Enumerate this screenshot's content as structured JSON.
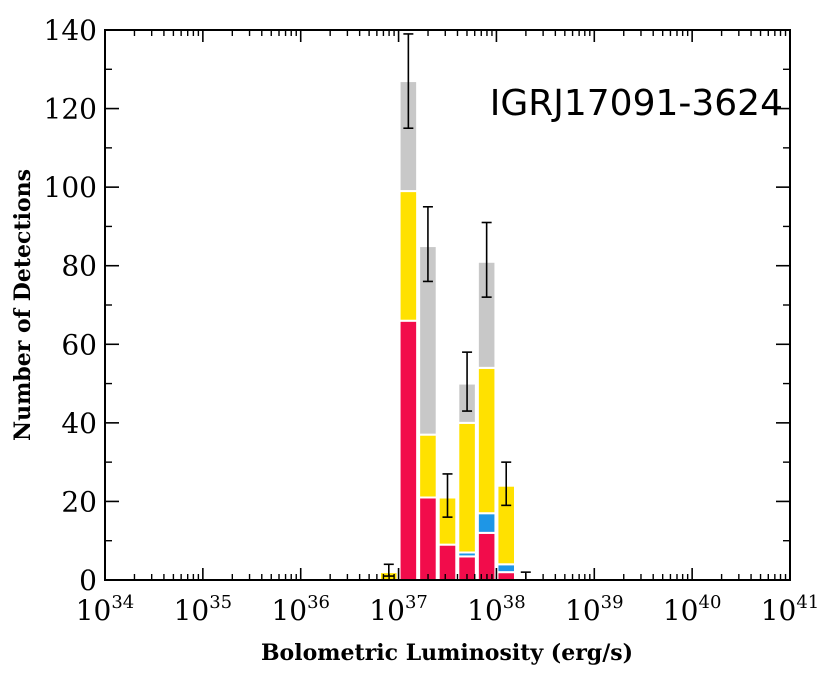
{
  "chart_data": {
    "type": "bar",
    "stacked": true,
    "annotation": "IGRJ17091-3624",
    "xlabel": "Bolometric Luminosity (erg/s)",
    "ylabel": "Number of Detections",
    "x_scale": "log",
    "xlim": [
      34,
      41
    ],
    "ylim": [
      0,
      140
    ],
    "x_tick_labels": [
      {
        "base": "10",
        "exp": "34"
      },
      {
        "base": "10",
        "exp": "35"
      },
      {
        "base": "10",
        "exp": "36"
      },
      {
        "base": "10",
        "exp": "37"
      },
      {
        "base": "10",
        "exp": "38"
      },
      {
        "base": "10",
        "exp": "39"
      },
      {
        "base": "10",
        "exp": "40"
      },
      {
        "base": "10",
        "exp": "41"
      }
    ],
    "y_tick_labels": [
      "0",
      "20",
      "40",
      "60",
      "80",
      "100",
      "120",
      "140"
    ],
    "grid": false,
    "bin_width_log": 0.2,
    "series_colors": [
      "#f20c4b",
      "#1e96e6",
      "#ffe100",
      "#c8c8c8"
    ],
    "bins": [
      {
        "log_l_start": 36.8,
        "stack": [
          0,
          0,
          2,
          0
        ],
        "total": 2,
        "err": [
          1,
          4
        ]
      },
      {
        "log_l_start": 37.0,
        "stack": [
          66,
          0,
          33,
          28
        ],
        "total": 127,
        "err": [
          115,
          139
        ]
      },
      {
        "log_l_start": 37.2,
        "stack": [
          21,
          0,
          16,
          48
        ],
        "total": 85,
        "err": [
          76,
          95
        ]
      },
      {
        "log_l_start": 37.4,
        "stack": [
          9,
          0,
          12,
          0
        ],
        "total": 21,
        "err": [
          16,
          27
        ]
      },
      {
        "log_l_start": 37.6,
        "stack": [
          6,
          1,
          33,
          10
        ],
        "total": 50,
        "err": [
          43,
          58
        ]
      },
      {
        "log_l_start": 37.8,
        "stack": [
          12,
          5,
          37,
          27
        ],
        "total": 81,
        "err": [
          72,
          91
        ]
      },
      {
        "log_l_start": 38.0,
        "stack": [
          2,
          2,
          20,
          0
        ],
        "total": 24,
        "err": [
          19,
          30
        ]
      },
      {
        "log_l_start": 38.2,
        "stack": [
          0,
          0,
          0,
          0
        ],
        "total": 0,
        "err": [
          0,
          2
        ]
      }
    ]
  }
}
